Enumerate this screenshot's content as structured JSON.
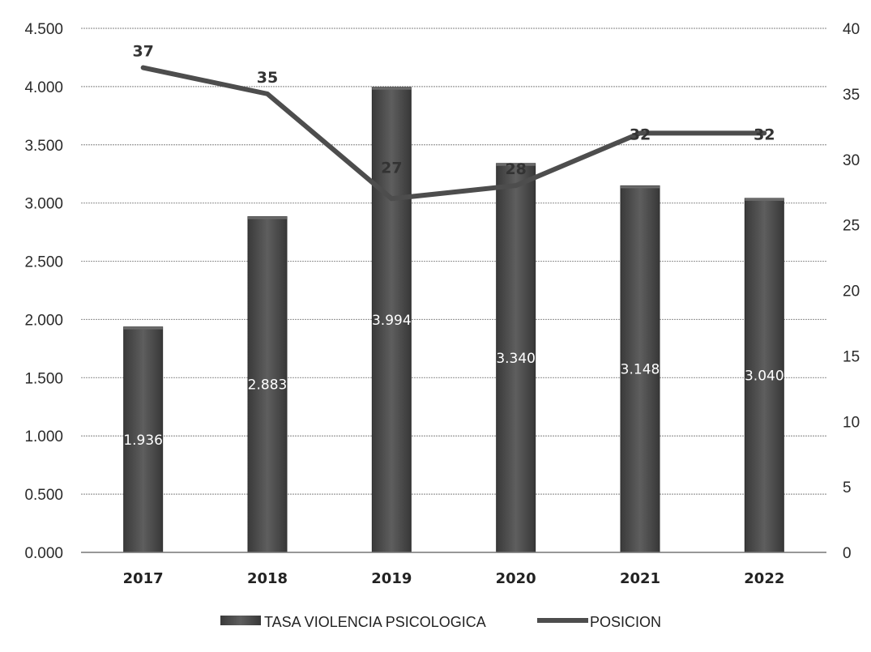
{
  "chart_data": {
    "type": "bar",
    "categories": [
      "2017",
      "2018",
      "2019",
      "2020",
      "2021",
      "2022"
    ],
    "series": [
      {
        "name": "TASA VIOLENCIA PSICOLOGICA",
        "kind": "bar",
        "axis": "left",
        "values": [
          1.936,
          2.883,
          3.994,
          3.34,
          3.148,
          3.04
        ],
        "labels": [
          "1.936",
          "2.883",
          "3.994",
          "3.340",
          "3.148",
          "3.040"
        ],
        "color": "#4a4a4a"
      },
      {
        "name": "POSICION",
        "kind": "line",
        "axis": "right",
        "values": [
          37,
          35,
          27,
          28,
          32,
          32
        ],
        "labels": [
          "37",
          "35",
          "27",
          "28",
          "32",
          "32"
        ],
        "color": "#4d4d4d"
      }
    ],
    "y_left": {
      "ylim": [
        0,
        4.5
      ],
      "ticks": [
        0,
        0.5,
        1,
        1.5,
        2,
        2.5,
        3,
        3.5,
        4,
        4.5
      ],
      "tick_labels": [
        "0.000",
        "0.500",
        "1.000",
        "1.500",
        "2.000",
        "2.500",
        "3.000",
        "3.500",
        "4.000",
        "4.500"
      ]
    },
    "y_right": {
      "ylim": [
        0,
        40
      ],
      "ticks": [
        0,
        5,
        10,
        15,
        20,
        25,
        30,
        35,
        40
      ],
      "tick_labels": [
        "0",
        "5",
        "10",
        "15",
        "20",
        "25",
        "30",
        "35",
        "40"
      ]
    },
    "grid": true,
    "legend_position": "bottom",
    "title": "",
    "xlabel": "",
    "ylabel": ""
  }
}
